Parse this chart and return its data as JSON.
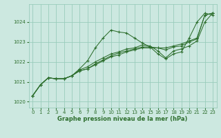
{
  "background_color": "#cce8e0",
  "grid_color": "#99ccbb",
  "line_color": "#2d6e2d",
  "text_color": "#2d6e2d",
  "xlabel": "Graphe pression niveau de la mer (hPa)",
  "ylim": [
    1019.7,
    1024.9
  ],
  "xlim": [
    -0.5,
    23.5
  ],
  "yticks": [
    1020,
    1021,
    1022,
    1023,
    1024
  ],
  "xticks": [
    0,
    1,
    2,
    3,
    4,
    5,
    6,
    7,
    8,
    9,
    10,
    11,
    12,
    13,
    14,
    15,
    16,
    17,
    18,
    19,
    20,
    21,
    22,
    23
  ],
  "series": [
    [
      1020.3,
      1020.85,
      1021.2,
      1021.15,
      1021.15,
      1021.3,
      1021.65,
      1022.05,
      1022.7,
      1023.2,
      1023.6,
      1023.5,
      1023.45,
      1023.2,
      1022.95,
      1022.75,
      1022.4,
      1022.15,
      1022.4,
      1022.5,
      1023.2,
      1024.0,
      1024.45,
      1024.35
    ],
    [
      1020.3,
      1020.85,
      1021.2,
      1021.15,
      1021.15,
      1021.3,
      1021.55,
      1021.65,
      1021.85,
      1022.05,
      1022.25,
      1022.35,
      1022.5,
      1022.6,
      1022.7,
      1022.7,
      1022.7,
      1022.7,
      1022.8,
      1022.9,
      1023.05,
      1023.2,
      1024.35,
      1024.45
    ],
    [
      1020.3,
      1020.85,
      1021.2,
      1021.15,
      1021.15,
      1021.3,
      1021.55,
      1021.65,
      1021.9,
      1022.1,
      1022.3,
      1022.45,
      1022.55,
      1022.65,
      1022.75,
      1022.75,
      1022.7,
      1022.6,
      1022.75,
      1022.8,
      1023.0,
      1023.15,
      1024.35,
      1024.45
    ],
    [
      1020.3,
      1020.85,
      1021.2,
      1021.15,
      1021.15,
      1021.3,
      1021.6,
      1021.75,
      1022.0,
      1022.2,
      1022.4,
      1022.5,
      1022.65,
      1022.7,
      1022.85,
      1022.8,
      1022.55,
      1022.2,
      1022.55,
      1022.65,
      1022.8,
      1023.05,
      1024.0,
      1024.45
    ]
  ]
}
